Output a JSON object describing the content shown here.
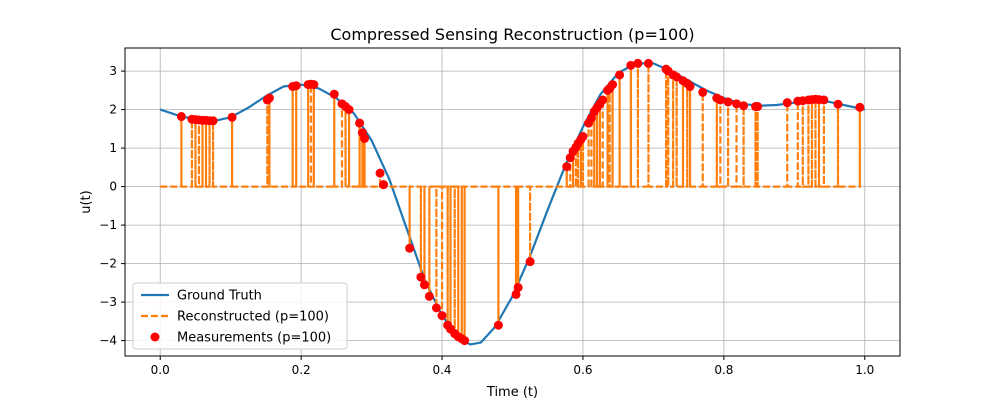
{
  "chart_data": {
    "type": "line",
    "title": "Compressed Sensing Reconstruction (p=100)",
    "xlabel": "Time (t)",
    "ylabel": "u(t)",
    "xlim": [
      -0.05,
      1.05
    ],
    "ylim": [
      -4.4,
      3.6
    ],
    "xticks": [
      0.0,
      0.2,
      0.4,
      0.6,
      0.8,
      1.0
    ],
    "xtick_labels": [
      "0.0",
      "0.2",
      "0.4",
      "0.6",
      "0.8",
      "1.0"
    ],
    "yticks": [
      -4,
      -3,
      -2,
      -1,
      0,
      1,
      2,
      3
    ],
    "ytick_labels": [
      "−4",
      "−3",
      "−2",
      "−1",
      "0",
      "1",
      "2",
      "3"
    ],
    "grid": true,
    "legend_position": "lower-left",
    "colors": {
      "ground_truth": "#1f77b4",
      "reconstructed": "#ff7f0e",
      "measurements": "#ff0000"
    },
    "series": [
      {
        "name": "Ground Truth",
        "style": "solid-line",
        "x": [
          0.0,
          0.025,
          0.05,
          0.075,
          0.1,
          0.125,
          0.15,
          0.175,
          0.2,
          0.225,
          0.25,
          0.275,
          0.3,
          0.325,
          0.35,
          0.375,
          0.4,
          0.425,
          0.44,
          0.455,
          0.475,
          0.5,
          0.525,
          0.55,
          0.575,
          0.6,
          0.625,
          0.65,
          0.675,
          0.7,
          0.725,
          0.75,
          0.775,
          0.8,
          0.825,
          0.85,
          0.875,
          0.9,
          0.925,
          0.95,
          0.975,
          1.0
        ],
        "y": [
          2.0,
          1.85,
          1.74,
          1.7,
          1.8,
          2.05,
          2.35,
          2.6,
          2.65,
          2.55,
          2.3,
          1.9,
          1.2,
          0.2,
          -1.1,
          -2.4,
          -3.35,
          -3.95,
          -4.1,
          -4.05,
          -3.65,
          -2.85,
          -1.8,
          -0.6,
          0.55,
          1.55,
          2.4,
          2.95,
          3.2,
          3.2,
          3.0,
          2.75,
          2.5,
          2.3,
          2.15,
          2.1,
          2.12,
          2.18,
          2.22,
          2.2,
          2.1,
          2.0
        ]
      },
      {
        "name": "Reconstructed (p=100)",
        "style": "dashed-line"
      },
      {
        "name": "Measurements (p=100)",
        "style": "markers",
        "x": [
          0.03,
          0.045,
          0.05,
          0.055,
          0.06,
          0.065,
          0.07,
          0.075,
          0.102,
          0.152,
          0.155,
          0.188,
          0.193,
          0.21,
          0.214,
          0.218,
          0.247,
          0.258,
          0.263,
          0.268,
          0.283,
          0.287,
          0.29,
          0.312,
          0.317,
          0.354,
          0.37,
          0.375,
          0.382,
          0.392,
          0.4,
          0.408,
          0.412,
          0.418,
          0.423,
          0.428,
          0.432,
          0.48,
          0.505,
          0.508,
          0.525,
          0.577,
          0.582,
          0.586,
          0.59,
          0.593,
          0.597,
          0.6,
          0.608,
          0.612,
          0.616,
          0.62,
          0.624,
          0.628,
          0.635,
          0.638,
          0.642,
          0.652,
          0.668,
          0.678,
          0.693,
          0.718,
          0.721,
          0.728,
          0.733,
          0.742,
          0.748,
          0.752,
          0.77,
          0.79,
          0.795,
          0.806,
          0.818,
          0.828,
          0.845,
          0.848,
          0.89,
          0.905,
          0.912,
          0.92,
          0.925,
          0.93,
          0.935,
          0.942,
          0.962,
          0.993
        ],
        "y": [
          1.82,
          1.75,
          1.74,
          1.73,
          1.72,
          1.72,
          1.71,
          1.71,
          1.8,
          2.25,
          2.3,
          2.6,
          2.62,
          2.65,
          2.66,
          2.65,
          2.4,
          2.15,
          2.08,
          2.0,
          1.65,
          1.4,
          1.25,
          0.35,
          0.05,
          -1.6,
          -2.35,
          -2.55,
          -2.85,
          -3.15,
          -3.35,
          -3.6,
          -3.7,
          -3.82,
          -3.9,
          -3.95,
          -4.0,
          -3.6,
          -2.8,
          -2.62,
          -1.95,
          0.52,
          0.75,
          0.92,
          1.02,
          1.12,
          1.22,
          1.3,
          1.65,
          1.78,
          1.95,
          2.05,
          2.15,
          2.25,
          2.5,
          2.55,
          2.65,
          2.9,
          3.15,
          3.2,
          3.2,
          3.05,
          3.0,
          2.9,
          2.85,
          2.75,
          2.68,
          2.6,
          2.45,
          2.3,
          2.25,
          2.2,
          2.15,
          2.1,
          2.08,
          2.08,
          2.18,
          2.22,
          2.23,
          2.25,
          2.26,
          2.27,
          2.26,
          2.25,
          2.14,
          2.06
        ]
      }
    ]
  }
}
